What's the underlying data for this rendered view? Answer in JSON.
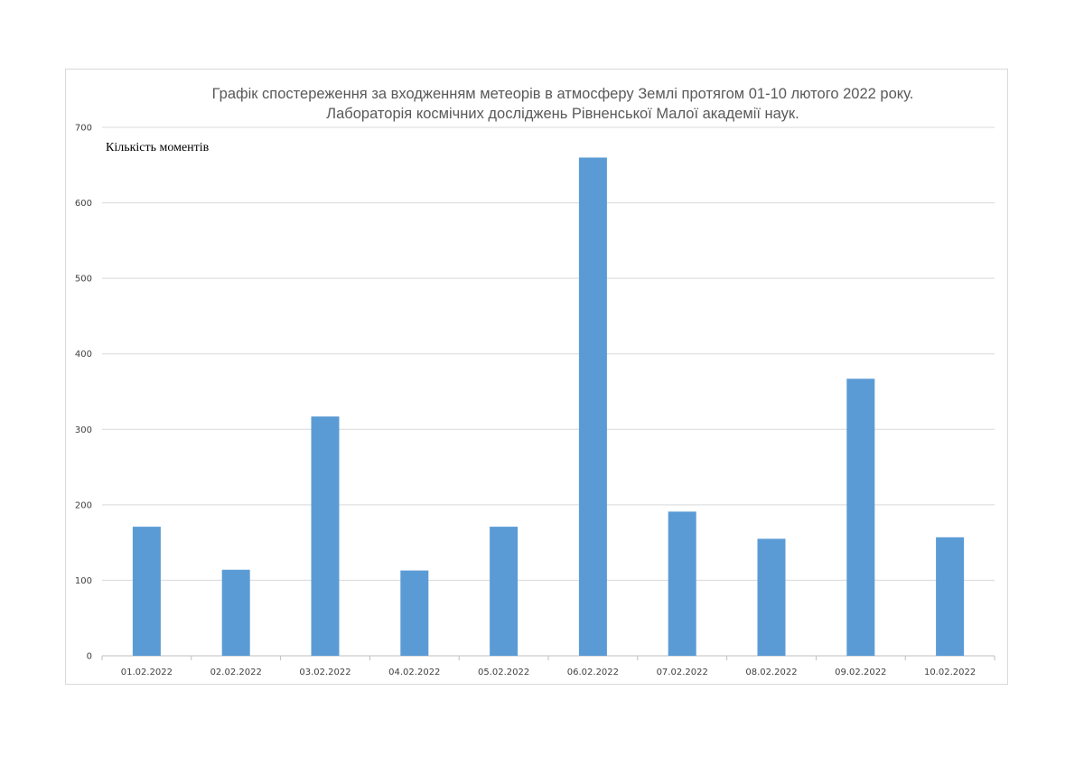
{
  "chart_data": {
    "type": "bar",
    "title_lines": [
      "Графік спостереження за входженням метеорів в атмосферу Землі протягом 01-10 лютого 2022 року.",
      "Лабораторія космічних досліджень Рівненської Малої академії наук."
    ],
    "ylabel": "Кількість моментів",
    "xlabel": "",
    "categories": [
      "01.02.2022",
      "02.02.2022",
      "03.02.2022",
      "04.02.2022",
      "05.02.2022",
      "06.02.2022",
      "07.02.2022",
      "08.02.2022",
      "09.02.2022",
      "10.02.2022"
    ],
    "values": [
      171,
      114,
      317,
      113,
      171,
      660,
      191,
      155,
      367,
      157
    ],
    "ylim": [
      0,
      700
    ],
    "yticks": [
      0,
      100,
      200,
      300,
      400,
      500,
      600,
      700
    ],
    "grid": true,
    "legend": "none",
    "bar_color": "#5b9bd5"
  }
}
